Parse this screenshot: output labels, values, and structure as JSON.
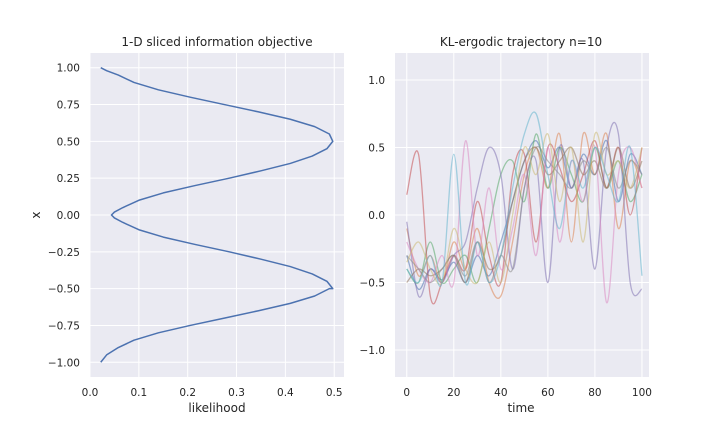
{
  "chart_data": [
    {
      "type": "line",
      "title": "1-D sliced information objective",
      "xlabel": "likelihood",
      "ylabel": "x",
      "xlim": [
        0.0,
        0.52
      ],
      "ylim": [
        -1.1,
        1.1
      ],
      "xticks": [
        "0.0",
        "0.1",
        "0.2",
        "0.3",
        "0.4",
        "0.5"
      ],
      "yticks": [
        "−1.00",
        "−0.75",
        "−0.50",
        "−0.25",
        "0.00",
        "0.25",
        "0.50",
        "0.75",
        "1.00"
      ],
      "grid": true,
      "series": [
        {
          "color": "#4c72b0",
          "x": [
            0.022,
            0.034,
            0.058,
            0.09,
            0.14,
            0.205,
            0.275,
            0.345,
            0.41,
            0.46,
            0.49,
            0.497,
            0.485,
            0.455,
            0.41,
            0.35,
            0.285,
            0.215,
            0.15,
            0.1,
            0.067,
            0.05,
            0.044,
            0.05,
            0.067,
            0.1,
            0.15,
            0.215,
            0.285,
            0.35,
            0.41,
            0.455,
            0.485,
            0.497,
            0.49,
            0.46,
            0.41,
            0.345,
            0.275,
            0.205,
            0.14,
            0.09,
            0.058,
            0.034,
            0.022
          ],
          "y": [
            -1.0,
            -0.95,
            -0.9,
            -0.85,
            -0.8,
            -0.75,
            -0.7,
            -0.65,
            -0.6,
            -0.55,
            -0.5,
            -0.5,
            -0.45,
            -0.4,
            -0.35,
            -0.3,
            -0.25,
            -0.2,
            -0.15,
            -0.1,
            -0.05,
            -0.02,
            0.0,
            0.02,
            0.05,
            0.1,
            0.15,
            0.2,
            0.25,
            0.3,
            0.35,
            0.4,
            0.45,
            0.5,
            0.55,
            0.6,
            0.65,
            0.7,
            0.75,
            0.8,
            0.85,
            0.9,
            0.95,
            0.98,
            1.0
          ]
        }
      ]
    },
    {
      "type": "line",
      "title": "KL-ergodic trajectory n=10",
      "xlabel": "time",
      "ylabel": "",
      "xlim": [
        -5,
        103
      ],
      "ylim": [
        -1.2,
        1.2
      ],
      "xticks": [
        "0",
        "20",
        "40",
        "60",
        "80",
        "100"
      ],
      "yticks": [
        "−1.0",
        "−0.5",
        "0.0",
        "0.5",
        "1.0"
      ],
      "grid": true,
      "series": [
        {
          "color": "#4c72b0",
          "x": [
            0,
            5,
            10,
            15,
            20,
            25,
            30,
            35,
            40,
            45,
            50,
            55,
            60,
            65,
            70,
            75,
            80,
            85,
            90,
            95,
            100
          ],
          "y": [
            -0.3,
            -0.55,
            -0.4,
            -0.48,
            -0.35,
            -0.5,
            -0.3,
            -0.45,
            -0.2,
            0.1,
            0.4,
            0.55,
            0.35,
            0.5,
            0.2,
            0.45,
            0.3,
            0.55,
            0.1,
            0.45,
            0.3
          ]
        },
        {
          "color": "#dd8452",
          "x": [
            0,
            5,
            10,
            15,
            20,
            25,
            30,
            35,
            40,
            45,
            50,
            55,
            60,
            65,
            70,
            75,
            80,
            85,
            90,
            95,
            100
          ],
          "y": [
            -0.1,
            -0.45,
            -0.3,
            -0.5,
            -0.2,
            -0.4,
            -0.1,
            -0.5,
            -0.6,
            -0.2,
            0.3,
            0.5,
            0.2,
            0.6,
            -0.2,
            0.6,
            0.3,
            0.6,
            -0.1,
            0.4,
            0.2
          ]
        },
        {
          "color": "#55a868",
          "x": [
            0,
            5,
            10,
            15,
            20,
            25,
            30,
            35,
            40,
            45,
            50,
            55,
            60,
            65,
            70,
            75,
            80,
            85,
            90,
            95,
            100
          ],
          "y": [
            -0.4,
            -0.5,
            -0.2,
            -0.5,
            -0.4,
            -0.3,
            -0.5,
            -0.1,
            0.3,
            0.4,
            0.1,
            0.6,
            0.2,
            0.5,
            0.3,
            0.1,
            0.5,
            0.2,
            0.4,
            0.1,
            0.3
          ]
        },
        {
          "color": "#c44e52",
          "x": [
            0,
            5,
            10,
            15,
            20,
            25,
            30,
            35,
            40,
            45,
            50,
            55,
            60,
            65,
            70,
            75,
            80,
            85,
            90,
            95,
            100
          ],
          "y": [
            0.15,
            0.45,
            -0.6,
            -0.5,
            -0.3,
            -0.4,
            0.1,
            -0.3,
            -0.5,
            0.3,
            0.45,
            -0.2,
            0.5,
            0.35,
            0.1,
            0.3,
            0.55,
            0.2,
            0.5,
            0.0,
            0.5
          ]
        },
        {
          "color": "#8172b3",
          "x": [
            0,
            5,
            10,
            15,
            20,
            25,
            30,
            35,
            40,
            45,
            50,
            55,
            60,
            65,
            70,
            75,
            80,
            85,
            90,
            95,
            100
          ],
          "y": [
            -0.05,
            -0.6,
            -0.4,
            -0.5,
            -0.3,
            -0.2,
            0.2,
            0.5,
            0.3,
            -0.4,
            0.2,
            0.4,
            -0.5,
            0.5,
            0.2,
            0.4,
            -0.4,
            0.5,
            0.6,
            -0.5,
            -0.55
          ]
        },
        {
          "color": "#937860",
          "x": [
            0,
            5,
            10,
            15,
            20,
            25,
            30,
            35,
            40,
            45,
            50,
            55,
            60,
            65,
            70,
            75,
            80,
            85,
            90,
            95,
            100
          ],
          "y": [
            -0.5,
            -0.4,
            -0.45,
            -0.4,
            -0.3,
            -0.5,
            -0.2,
            -0.4,
            -0.3,
            0.1,
            0.4,
            0.5,
            0.3,
            0.4,
            0.5,
            0.3,
            0.4,
            0.2,
            0.5,
            0.2,
            0.4
          ]
        },
        {
          "color": "#da8bc3",
          "x": [
            0,
            5,
            10,
            15,
            20,
            25,
            30,
            35,
            40,
            45,
            50,
            55,
            60,
            65,
            70,
            75,
            80,
            85,
            90,
            95,
            100
          ],
          "y": [
            -0.2,
            -0.4,
            -0.5,
            -0.3,
            -0.5,
            0.55,
            -0.3,
            0.2,
            -0.4,
            -0.1,
            0.3,
            -0.3,
            0.5,
            -0.2,
            0.4,
            0.1,
            0.5,
            -0.65,
            0.3,
            0.5,
            0.2
          ]
        },
        {
          "color": "#8c8c8c",
          "x": [
            0,
            5,
            10,
            15,
            20,
            25,
            30,
            35,
            40,
            45,
            50,
            55,
            60,
            65,
            70,
            75,
            80,
            85,
            90,
            95,
            100
          ],
          "y": [
            -0.3,
            -0.4,
            -0.5,
            -0.4,
            -0.3,
            -0.45,
            -0.2,
            -0.5,
            -0.3,
            -0.4,
            0.2,
            0.5,
            0.4,
            0.3,
            0.2,
            0.4,
            0.3,
            0.5,
            0.2,
            0.4,
            0.3
          ]
        },
        {
          "color": "#ccb974",
          "x": [
            0,
            5,
            10,
            15,
            20,
            25,
            30,
            35,
            40,
            45,
            50,
            55,
            60,
            65,
            70,
            75,
            80,
            85,
            90,
            95,
            100
          ],
          "y": [
            -0.35,
            -0.2,
            -0.4,
            -0.5,
            -0.1,
            -0.4,
            -0.5,
            -0.2,
            -0.5,
            0.0,
            0.5,
            0.3,
            0.6,
            0.1,
            0.5,
            -0.2,
            0.6,
            0.3,
            0.4,
            0.2,
            0.5
          ]
        },
        {
          "color": "#64b5cd",
          "x": [
            0,
            5,
            10,
            15,
            20,
            25,
            30,
            35,
            40,
            45,
            50,
            55,
            60,
            65,
            70,
            75,
            80,
            85,
            90,
            95,
            100
          ],
          "y": [
            -0.4,
            -0.5,
            -0.3,
            -0.5,
            0.45,
            -0.5,
            -0.2,
            -0.5,
            -0.3,
            0.2,
            0.6,
            0.75,
            0.3,
            -0.1,
            0.4,
            0.2,
            0.5,
            0.3,
            0.1,
            0.5,
            -0.45
          ]
        }
      ]
    }
  ]
}
